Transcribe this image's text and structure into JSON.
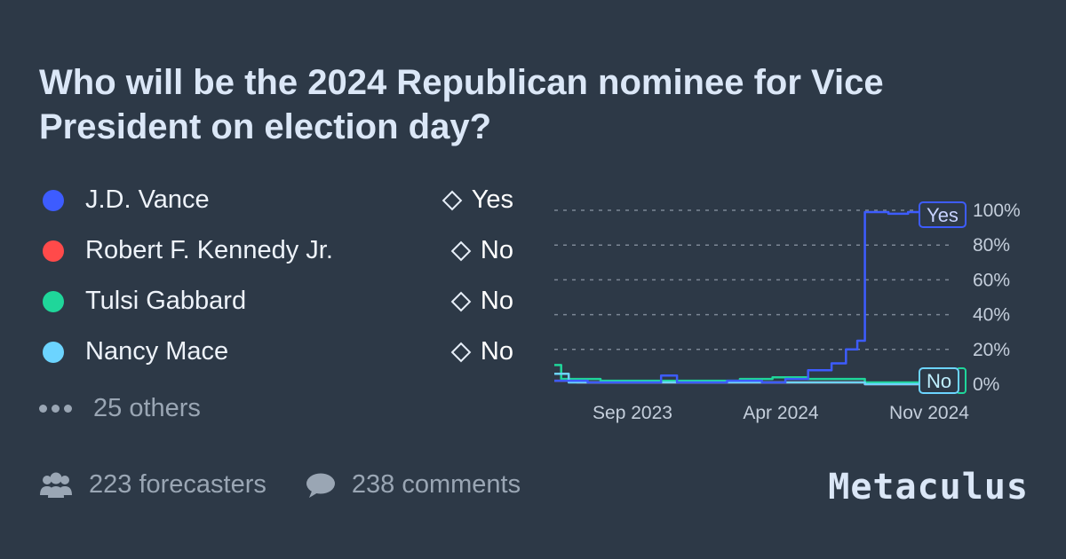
{
  "header": {
    "title": "Who will be the 2024 Republican nominee for Vice President on election day?"
  },
  "options": [
    {
      "name": "J.D. Vance",
      "result": "Yes",
      "color": "#3d5cff"
    },
    {
      "name": "Robert F. Kennedy Jr.",
      "result": "No",
      "color": "#ff4a4a"
    },
    {
      "name": "Tulsi Gabbard",
      "result": "No",
      "color": "#1fd69a"
    },
    {
      "name": "Nancy Mace",
      "result": "No",
      "color": "#6cd4ff"
    }
  ],
  "others_label": "25 others",
  "footer": {
    "forecasters": "223 forecasters",
    "comments": "238 comments",
    "forecasters_icon": "users-icon",
    "comments_icon": "comment-icon"
  },
  "brand": "Metaculus",
  "chart_data": {
    "type": "line",
    "x_ticks": [
      "Sep 2023",
      "Apr 2024",
      "Nov 2024"
    ],
    "y_ticks": [
      "0%",
      "20%",
      "40%",
      "60%",
      "80%",
      "100%"
    ],
    "ylim": [
      0,
      100
    ],
    "grid": true,
    "end_labels": {
      "yes": "Yes",
      "no": "No"
    },
    "series": [
      {
        "name": "J.D. Vance",
        "color": "#3d5cff",
        "points": [
          [
            "2023-06-01",
            2
          ],
          [
            "2023-07-15",
            1
          ],
          [
            "2023-10-01",
            1
          ],
          [
            "2023-10-20",
            5
          ],
          [
            "2023-11-10",
            1
          ],
          [
            "2024-01-15",
            2
          ],
          [
            "2024-03-01",
            1
          ],
          [
            "2024-04-01",
            3
          ],
          [
            "2024-05-01",
            8
          ],
          [
            "2024-06-01",
            12
          ],
          [
            "2024-06-20",
            20
          ],
          [
            "2024-07-05",
            25
          ],
          [
            "2024-07-15",
            99
          ],
          [
            "2024-08-15",
            98
          ],
          [
            "2024-09-10",
            99
          ],
          [
            "2024-11-05",
            100
          ]
        ]
      },
      {
        "name": "Robert F. Kennedy Jr.",
        "color": "#ff4a4a",
        "points": [
          [
            "2023-06-01",
            2
          ],
          [
            "2023-07-01",
            1
          ],
          [
            "2024-05-01",
            1
          ],
          [
            "2024-07-15",
            0
          ],
          [
            "2024-11-05",
            0
          ]
        ]
      },
      {
        "name": "Tulsi Gabbard",
        "color": "#1fd69a",
        "points": [
          [
            "2023-06-01",
            11
          ],
          [
            "2023-06-10",
            3
          ],
          [
            "2023-08-01",
            2
          ],
          [
            "2023-11-01",
            2
          ],
          [
            "2024-02-01",
            3
          ],
          [
            "2024-03-15",
            4
          ],
          [
            "2024-05-01",
            3
          ],
          [
            "2024-07-15",
            1
          ],
          [
            "2024-11-05",
            1
          ]
        ]
      },
      {
        "name": "Nancy Mace",
        "color": "#6cd4ff",
        "points": [
          [
            "2023-06-01",
            6
          ],
          [
            "2023-06-20",
            1
          ],
          [
            "2024-06-01",
            1
          ],
          [
            "2024-07-15",
            0
          ],
          [
            "2024-11-05",
            0
          ]
        ]
      }
    ]
  }
}
